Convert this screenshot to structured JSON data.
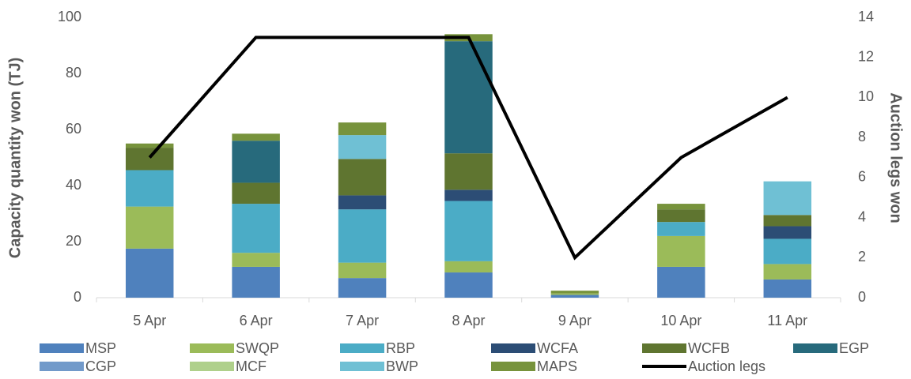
{
  "chart_data": {
    "type": "bar",
    "stacked": true,
    "ylabel": "Capacity quantity won (TJ)",
    "y2label": "Auction legs won",
    "categories": [
      "5 Apr",
      "6 Apr",
      "7 Apr",
      "8 Apr",
      "9 Apr",
      "10 Apr",
      "11 Apr"
    ],
    "series": [
      {
        "name": "MSP",
        "color": "#4f81bd",
        "values": [
          17.5,
          11,
          7,
          9,
          1,
          11,
          6.5
        ]
      },
      {
        "name": "SWQP",
        "color": "#9bbb59",
        "values": [
          15,
          5,
          5.5,
          4,
          0.5,
          11,
          5.5
        ]
      },
      {
        "name": "RBP",
        "color": "#4bacc6",
        "values": [
          13,
          17.5,
          19,
          21.5,
          0,
          5,
          9
        ]
      },
      {
        "name": "WCFA",
        "color": "#2c4d75",
        "values": [
          0,
          0,
          5,
          4,
          0,
          0,
          4.5
        ]
      },
      {
        "name": "WCFB",
        "color": "#5f7530",
        "values": [
          8,
          7.5,
          13,
          13,
          0,
          4.5,
          4
        ]
      },
      {
        "name": "EGP",
        "color": "#276a7c",
        "values": [
          0,
          15,
          0,
          40,
          0,
          0,
          0
        ]
      },
      {
        "name": "CGP",
        "color": "#729aca",
        "values": [
          0,
          0,
          0,
          0,
          0,
          0,
          0
        ]
      },
      {
        "name": "MCF",
        "color": "#afd08b",
        "values": [
          0,
          0,
          0,
          0,
          0,
          0,
          0
        ]
      },
      {
        "name": "BWP",
        "color": "#6fc0d4",
        "values": [
          0,
          0,
          8.5,
          0,
          0,
          0,
          12
        ]
      },
      {
        "name": "MAPS",
        "color": "#77933c",
        "values": [
          1.5,
          2.5,
          4.5,
          2.5,
          1,
          2,
          0
        ]
      },
      {
        "name": "Auction legs",
        "color": "#000000",
        "type": "line",
        "axis": "y2",
        "values": [
          7,
          13,
          13,
          13,
          2,
          7,
          10
        ]
      }
    ],
    "ylim": [
      0,
      100
    ],
    "yticks": [
      0,
      20,
      40,
      60,
      80,
      100
    ],
    "y2lim": [
      0,
      14
    ],
    "y2ticks": [
      0,
      2,
      4,
      6,
      8,
      10,
      12,
      14
    ],
    "grid": false,
    "legend": "bottom"
  }
}
